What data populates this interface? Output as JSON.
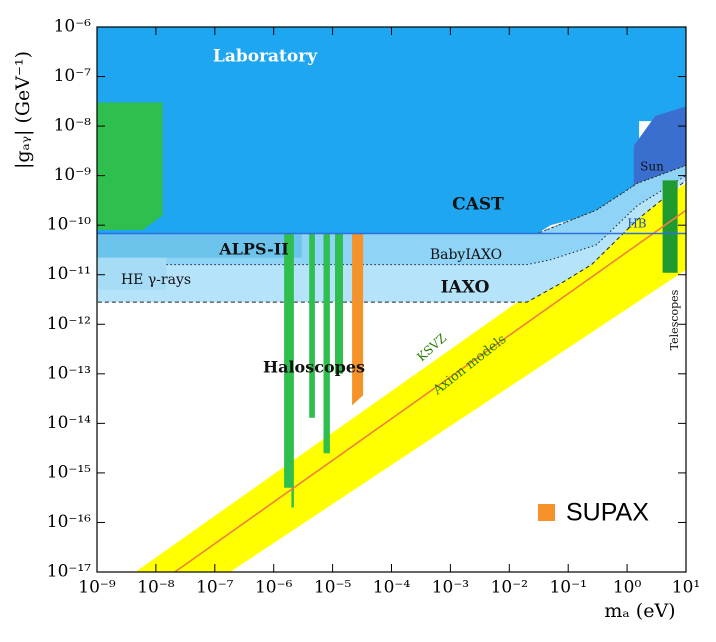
{
  "chart_data": {
    "type": "region",
    "xlabel": "mₐ (eV)",
    "ylabel": "|gₐᵧ| (GeV⁻¹)",
    "log_x": true,
    "log_y": true,
    "xlim": [
      1e-09,
      10
    ],
    "ylim": [
      1e-17,
      1e-06
    ],
    "xticks": [
      {
        "value": 1e-09,
        "label": "10⁻⁹"
      },
      {
        "value": 1e-08,
        "label": "10⁻⁸"
      },
      {
        "value": 1e-07,
        "label": "10⁻⁷"
      },
      {
        "value": 1e-06,
        "label": "10⁻⁶"
      },
      {
        "value": 1e-05,
        "label": "10⁻⁵"
      },
      {
        "value": 0.0001,
        "label": "10⁻⁴"
      },
      {
        "value": 0.001,
        "label": "10⁻³"
      },
      {
        "value": 0.01,
        "label": "10⁻²"
      },
      {
        "value": 0.1,
        "label": "10⁻¹"
      },
      {
        "value": 1,
        "label": "10⁰"
      },
      {
        "value": 10,
        "label": "10¹"
      }
    ],
    "yticks": [
      {
        "value": 1e-17,
        "label": "10⁻¹⁷"
      },
      {
        "value": 1e-16,
        "label": "10⁻¹⁶"
      },
      {
        "value": 1e-15,
        "label": "10⁻¹⁵"
      },
      {
        "value": 1e-14,
        "label": "10⁻¹⁴"
      },
      {
        "value": 1e-13,
        "label": "10⁻¹³"
      },
      {
        "value": 1e-12,
        "label": "10⁻¹²"
      },
      {
        "value": 1e-11,
        "label": "10⁻¹¹"
      },
      {
        "value": 1e-10,
        "label": "10⁻¹⁰"
      },
      {
        "value": 1e-09,
        "label": "10⁻⁹"
      },
      {
        "value": 1e-08,
        "label": "10⁻⁸"
      },
      {
        "value": 1e-07,
        "label": "10⁻⁷"
      },
      {
        "value": 1e-06,
        "label": "10⁻⁶"
      }
    ],
    "regions": [
      {
        "name": "Axion models",
        "color": "#ffff00",
        "x": [
          4.47e-09,
          10,
          10,
          1.82e-07
        ],
        "y": [
          1e-17,
          7.08e-10,
          1.26e-11,
          1e-17
        ]
      },
      {
        "name": "Laboratory",
        "color": "#6b6b6b",
        "x": [
          1e-09,
          0.0025,
          0.0013,
          0.0008,
          0.0005,
          1e-09
        ],
        "y": [
          1e-06,
          1e-06,
          3e-07,
          1e-07,
          5.6e-08,
          5.6e-08
        ]
      },
      {
        "name": "CAST",
        "color": "#1ea7f0",
        "x": [
          1e-09,
          10,
          10,
          1.6,
          1.6,
          0.32,
          0.05,
          0.03,
          1e-09
        ],
        "y": [
          1e-06,
          1e-06,
          1.26e-08,
          1.26e-08,
          2.5e-10,
          1.8e-10,
          1e-10,
          6.8e-11,
          6.8e-11
        ]
      },
      {
        "name": "Sun",
        "color": "#3a6fd0",
        "x": [
          1.3,
          3,
          10,
          10,
          2.5,
          1.3
        ],
        "y": [
          4e-09,
          1.6e-08,
          2.5e-08,
          1e-09,
          5e-10,
          2.5e-10
        ]
      },
      {
        "name": "IAXO",
        "color": "#b5e3fa",
        "dash": "dashed",
        "x": [
          1e-09,
          0.03,
          0.3,
          1.5,
          10,
          10,
          1.5,
          0.25,
          0.08,
          0.02,
          1e-09
        ],
        "y": [
          6.8e-11,
          6.8e-11,
          2e-10,
          7e-10,
          1.6e-09,
          8e-10,
          1.3e-10,
          1.6e-11,
          7e-12,
          2.8e-12,
          2.8e-12
        ]
      },
      {
        "name": "BabyIAXO",
        "color": "#8fd3f7",
        "dash": "dotted",
        "x": [
          1e-09,
          0.03,
          0.3,
          1.5,
          10,
          10,
          1.5,
          0.3,
          0.05,
          0.02,
          1e-09
        ],
        "y": [
          6.8e-11,
          6.8e-11,
          2e-10,
          7e-10,
          1.6e-09,
          1e-09,
          2.5e-10,
          4e-11,
          2e-11,
          1.6e-11,
          1.6e-11
        ]
      },
      {
        "name": "ALPS-II",
        "color": "#6cc3ec",
        "x": [
          1e-09,
          3e-06,
          3e-06,
          1e-09
        ],
        "y": [
          6.8e-11,
          6.8e-11,
          2.2e-11,
          2.2e-11
        ]
      },
      {
        "name": "HE γ-rays",
        "color": "#a6dcf6",
        "x": [
          1e-09,
          1.5e-08,
          1.5e-08,
          1e-09
        ],
        "y": [
          2.2e-11,
          2.2e-11,
          5e-12,
          5e-12
        ]
      },
      {
        "color": "#2fbf4f",
        "x": [
          1e-09,
          1.3e-08,
          1.3e-08,
          6e-09,
          1e-09
        ],
        "y": [
          3e-08,
          3e-08,
          1.6e-10,
          8e-11,
          8e-11
        ]
      },
      {
        "name": "Haloscopes",
        "color": "#2fbf4f",
        "x": [
          1.5e-06,
          2e-06,
          2e-06,
          1.5e-06,
          null,
          2e-06,
          2.2e-06,
          2.2e-06,
          2e-06,
          null,
          4e-06,
          5e-06,
          5e-06,
          4e-06,
          null,
          7e-06,
          9e-06,
          9e-06,
          7e-06,
          null,
          1.1e-05,
          1.5e-05,
          1.5e-05,
          1.1e-05
        ],
        "y": [
          6.8e-11,
          6.8e-11,
          5e-16,
          5e-16,
          null,
          6.8e-11,
          6.8e-11,
          2e-16,
          2e-16,
          null,
          6.8e-11,
          6.8e-11,
          1.3e-14,
          1.3e-14,
          null,
          6.8e-11,
          6.8e-11,
          2.5e-15,
          2.5e-15,
          null,
          6.8e-11,
          6.8e-11,
          1e-13,
          1e-13
        ]
      },
      {
        "name": "SUPAX",
        "color": "#f5922a",
        "legend": true,
        "x": [
          2.14e-05,
          3.3e-05,
          3.3e-05,
          2.14e-05
        ],
        "y": [
          6.8e-11,
          6.8e-11,
          3.7e-14,
          2.3e-14
        ]
      },
      {
        "name": "Telescopes",
        "color": "#1f9a2f",
        "x": [
          4,
          7.2,
          7.2,
          4
        ],
        "y": [
          8e-10,
          8e-10,
          1.1e-11,
          1.1e-11
        ]
      }
    ],
    "lines": [
      {
        "name": "KSVZ",
        "color": "#f08040",
        "x": [
          2.09e-08,
          10
        ],
        "y": [
          1e-17,
          2e-10
        ]
      },
      {
        "name": "HB",
        "color": "#2f6fe0",
        "x": [
          1e-09,
          10
        ],
        "y": [
          6.8e-11,
          6.8e-11
        ]
      }
    ]
  }
}
